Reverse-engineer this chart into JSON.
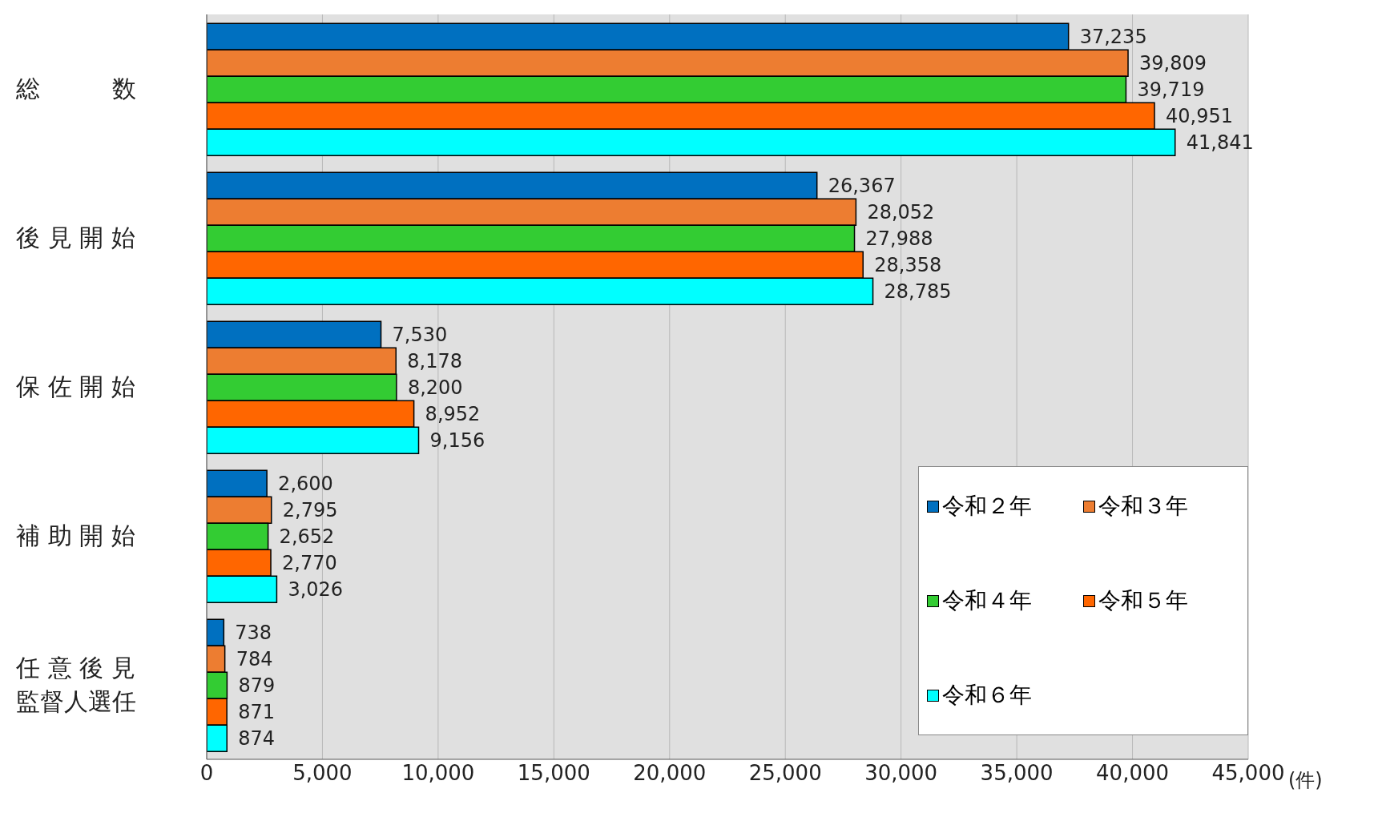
{
  "chart_data": {
    "type": "bar",
    "orientation": "horizontal",
    "xlabel": "(件)",
    "categories": [
      "総　　　数",
      "後 見 開 始",
      "保 佐 開 始",
      "補 助 開 始",
      "任 意 後 見監督人選任"
    ],
    "series": [
      {
        "name": "令和２年",
        "color": "#0070c0",
        "values": [
          37235,
          26367,
          7530,
          2600,
          738
        ],
        "value_labels": [
          "37,235",
          "26,367",
          "7,530",
          "2,600",
          "738"
        ]
      },
      {
        "name": "令和３年",
        "color": "#ed7d31",
        "values": [
          39809,
          28052,
          8178,
          2795,
          784
        ],
        "value_labels": [
          "39,809",
          "28,052",
          "8,178",
          "2,795",
          "784"
        ]
      },
      {
        "name": "令和４年",
        "color": "#33cc33",
        "values": [
          39719,
          27988,
          8200,
          2652,
          879
        ],
        "value_labels": [
          "39,719",
          "27,988",
          "8,200",
          "2,652",
          "879"
        ]
      },
      {
        "name": "令和５年",
        "color": "#ff6600",
        "values": [
          40951,
          28358,
          8952,
          2770,
          871
        ],
        "value_labels": [
          "40,951",
          "28,358",
          "8,952",
          "2,770",
          "871"
        ]
      },
      {
        "name": "令和６年",
        "color": "#00ffff",
        "values": [
          41841,
          28785,
          9156,
          3026,
          874
        ],
        "value_labels": [
          "41,841",
          "28,785",
          "9,156",
          "3,026",
          "874"
        ]
      }
    ],
    "xlim": [
      0,
      45000
    ],
    "xticks": [
      0,
      {
        "value": 5000,
        "label": "5,000"
      },
      {
        "value": 10000,
        "label": "10,000"
      },
      {
        "value": 15000,
        "label": "15,000"
      },
      {
        "value": 20000,
        "label": "20,000"
      },
      {
        "value": 25000,
        "label": "25,000"
      },
      {
        "value": 30000,
        "label": "30,000"
      },
      {
        "value": 35000,
        "label": "35,000"
      },
      {
        "value": 40000,
        "label": "40,000"
      },
      {
        "value": 45000,
        "label": "45,000"
      }
    ],
    "grid": "x",
    "legend": "bottom right"
  }
}
